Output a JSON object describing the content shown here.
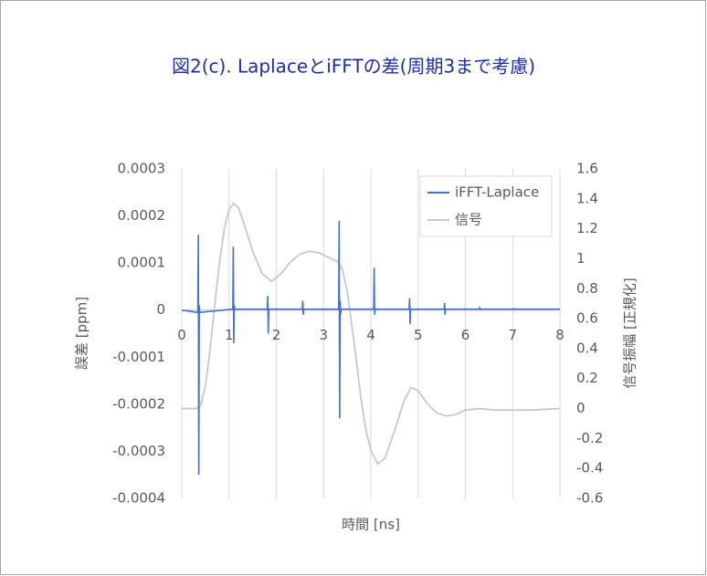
{
  "chart_data": {
    "type": "line",
    "title": "図2(c). LaplaceとiFFTの差(周期3まで考慮)",
    "x_label": "時間 [ns]",
    "y_label": "誤差 [ppm]",
    "y2_label": "信号振幅 [正規化]",
    "xlim": [
      0,
      8
    ],
    "xticks": [
      0,
      1,
      2,
      3,
      4,
      5,
      6,
      7,
      8
    ],
    "ylim": [
      -0.0004,
      0.0003
    ],
    "yticks": [
      0.0003,
      0.0002,
      0.0001,
      0,
      -0.0001,
      -0.0002,
      -0.0003,
      -0.0004
    ],
    "y2lim": [
      -0.6,
      1.6
    ],
    "y2ticks": [
      1.6,
      1.4,
      1.2,
      1,
      0.8,
      0.6,
      0.4,
      0.2,
      0,
      -0.2,
      -0.4,
      -0.6
    ],
    "grid": "x",
    "legend": "upper right",
    "series": [
      {
        "name": "iFFT-Laplace",
        "color": "#4472c4",
        "x": [
          0,
          0.34,
          0.35,
          0.36,
          0.37,
          0.38,
          1.08,
          1.09,
          1.1,
          1.11,
          1.12,
          1.81,
          1.82,
          1.83,
          1.84,
          2.55,
          2.56,
          2.57,
          2.58,
          3.32,
          3.33,
          3.34,
          3.35,
          3.36,
          3.37,
          4.06,
          4.07,
          4.08,
          4.09,
          4.81,
          4.82,
          4.83,
          4.84,
          5.55,
          5.56,
          5.57,
          5.58,
          6.29,
          6.3,
          6.31,
          7.03,
          7.04,
          7.05,
          8
        ],
        "values": [
          0,
          -5e-06,
          0.00016,
          -0.00035,
          1e-05,
          -5e-06,
          2e-06,
          0.000135,
          -7e-05,
          1e-05,
          2e-06,
          2e-06,
          3e-05,
          -5e-05,
          2e-06,
          2e-06,
          2e-05,
          -1e-05,
          2e-06,
          2e-06,
          0.00019,
          -0.00023,
          2e-05,
          -1e-05,
          2e-06,
          2e-06,
          9e-05,
          -1e-05,
          2e-06,
          2e-06,
          2.5e-05,
          -3e-05,
          2e-06,
          2e-06,
          1.5e-05,
          -1e-05,
          2e-06,
          2e-06,
          5e-06,
          2e-06,
          2e-06,
          3e-06,
          2e-06,
          2e-06
        ]
      },
      {
        "name": "信号",
        "color": "#c8c8c8",
        "axis": "y2",
        "x": [
          0,
          0.3,
          0.4,
          0.5,
          0.6,
          0.7,
          0.8,
          0.9,
          1.0,
          1.1,
          1.2,
          1.3,
          1.5,
          1.7,
          1.9,
          2.1,
          2.3,
          2.5,
          2.7,
          2.9,
          3.1,
          3.3,
          3.4,
          3.5,
          3.6,
          3.7,
          3.8,
          3.9,
          4.0,
          4.15,
          4.3,
          4.5,
          4.7,
          4.85,
          5.0,
          5.2,
          5.4,
          5.6,
          5.8,
          6.0,
          6.3,
          6.6,
          7.0,
          7.4,
          8.0
        ],
        "values": [
          0,
          0,
          0.02,
          0.15,
          0.4,
          0.7,
          0.98,
          1.2,
          1.33,
          1.37,
          1.34,
          1.25,
          1.05,
          0.9,
          0.85,
          0.9,
          0.98,
          1.03,
          1.05,
          1.04,
          1.01,
          0.98,
          0.93,
          0.78,
          0.55,
          0.3,
          0.05,
          -0.15,
          -0.28,
          -0.37,
          -0.33,
          -0.15,
          0.05,
          0.14,
          0.12,
          0.03,
          -0.03,
          -0.05,
          -0.04,
          -0.01,
          0,
          -0.01,
          -0.01,
          -0.01,
          0
        ]
      }
    ]
  }
}
